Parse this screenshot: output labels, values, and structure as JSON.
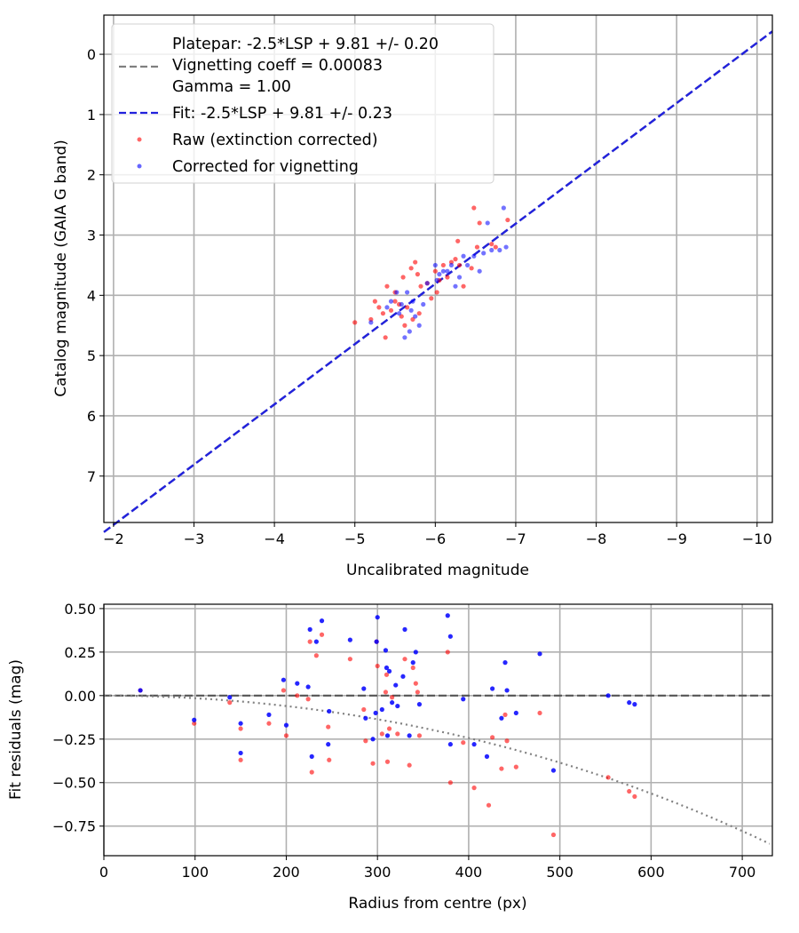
{
  "chart_data": [
    {
      "type": "scatter",
      "xlabel": "Uncalibrated magnitude",
      "ylabel": "Catalog magnitude (GAIA G band)",
      "xlim": [
        -1.88,
        -10.19
      ],
      "ylim": [
        7.77,
        -0.65
      ],
      "xticks": [
        -2,
        -3,
        -4,
        -5,
        -6,
        -7,
        -8,
        -9,
        -10
      ],
      "xtick_labels": [
        "−2",
        "−3",
        "−4",
        "−5",
        "−6",
        "−7",
        "−8",
        "−9",
        "−10"
      ],
      "yticks": [
        0,
        1,
        2,
        3,
        4,
        5,
        6,
        7
      ],
      "ytick_labels": [
        "0",
        "1",
        "2",
        "3",
        "4",
        "5",
        "6",
        "7"
      ],
      "grid": true,
      "legend_position": "top-left",
      "legend": {
        "platepar_line1": "Platepar: -2.5*LSP + 9.81 +/- 0.20",
        "platepar_line2": "Vignetting coeff = 0.00083",
        "platepar_line3": "Gamma = 1.00",
        "fit": "Fit: -2.5*LSP + 9.81 +/- 0.23",
        "raw": "Raw (extinction corrected)",
        "corrected": "Corrected for vignetting"
      },
      "lines": [
        {
          "name": "Platepar",
          "slope": 1,
          "intercept": 9.81,
          "color": "#808080",
          "style": "dashed"
        },
        {
          "name": "Fit",
          "slope": 1,
          "intercept": 9.81,
          "color": "#2222dd",
          "style": "dashed"
        }
      ],
      "series": [
        {
          "name": "Raw (extinction corrected)",
          "color": "#ff0000",
          "points": [
            [
              -5.0,
              4.45
            ],
            [
              -5.2,
              4.4
            ],
            [
              -5.25,
              4.1
            ],
            [
              -5.3,
              4.2
            ],
            [
              -5.35,
              4.3
            ],
            [
              -5.38,
              4.7
            ],
            [
              -5.4,
              3.85
            ],
            [
              -5.45,
              4.25
            ],
            [
              -5.5,
              4.1
            ],
            [
              -5.5,
              3.95
            ],
            [
              -5.55,
              4.15
            ],
            [
              -5.58,
              4.35
            ],
            [
              -5.6,
              3.7
            ],
            [
              -5.62,
              4.5
            ],
            [
              -5.65,
              4.2
            ],
            [
              -5.7,
              3.55
            ],
            [
              -5.72,
              4.4
            ],
            [
              -5.75,
              3.45
            ],
            [
              -5.78,
              3.65
            ],
            [
              -5.8,
              4.3
            ],
            [
              -5.82,
              3.85
            ],
            [
              -5.9,
              3.8
            ],
            [
              -5.95,
              4.05
            ],
            [
              -6.0,
              3.6
            ],
            [
              -6.02,
              3.95
            ],
            [
              -6.05,
              3.75
            ],
            [
              -6.1,
              3.5
            ],
            [
              -6.15,
              3.7
            ],
            [
              -6.2,
              3.45
            ],
            [
              -6.25,
              3.4
            ],
            [
              -6.28,
              3.1
            ],
            [
              -6.3,
              3.5
            ],
            [
              -6.35,
              3.85
            ],
            [
              -6.45,
              3.55
            ],
            [
              -6.48,
              2.55
            ],
            [
              -6.52,
              3.2
            ],
            [
              -6.55,
              2.8
            ],
            [
              -6.7,
              3.15
            ],
            [
              -6.75,
              3.2
            ],
            [
              -6.9,
              2.75
            ]
          ]
        },
        {
          "name": "Corrected for vignetting",
          "color": "#0000ff",
          "points": [
            [
              -5.2,
              4.45
            ],
            [
              -5.4,
              4.2
            ],
            [
              -5.45,
              4.1
            ],
            [
              -5.52,
              3.95
            ],
            [
              -5.55,
              4.3
            ],
            [
              -5.58,
              4.15
            ],
            [
              -5.62,
              4.7
            ],
            [
              -5.65,
              3.95
            ],
            [
              -5.68,
              4.6
            ],
            [
              -5.7,
              4.25
            ],
            [
              -5.72,
              4.1
            ],
            [
              -5.75,
              4.35
            ],
            [
              -5.8,
              4.5
            ],
            [
              -5.85,
              4.15
            ],
            [
              -5.9,
              3.8
            ],
            [
              -6.0,
              3.5
            ],
            [
              -6.02,
              3.75
            ],
            [
              -6.05,
              3.65
            ],
            [
              -6.1,
              3.6
            ],
            [
              -6.15,
              3.6
            ],
            [
              -6.2,
              3.5
            ],
            [
              -6.25,
              3.85
            ],
            [
              -6.3,
              3.7
            ],
            [
              -6.35,
              3.35
            ],
            [
              -6.4,
              3.5
            ],
            [
              -6.48,
              3.35
            ],
            [
              -6.55,
              3.6
            ],
            [
              -6.6,
              3.3
            ],
            [
              -6.65,
              2.8
            ],
            [
              -6.7,
              3.25
            ],
            [
              -6.8,
              3.25
            ],
            [
              -6.85,
              2.55
            ],
            [
              -6.88,
              3.2
            ]
          ]
        }
      ]
    },
    {
      "type": "scatter",
      "xlabel": "Radius from centre (px)",
      "ylabel": "Fit residuals (mag)",
      "xlim": [
        0,
        733
      ],
      "ylim": [
        -0.92,
        0.525
      ],
      "xticks": [
        0,
        100,
        200,
        300,
        400,
        500,
        600,
        700
      ],
      "xtick_labels": [
        "0",
        "100",
        "200",
        "300",
        "400",
        "500",
        "600",
        "700"
      ],
      "yticks": [
        0.5,
        0.25,
        0,
        -0.25,
        -0.5,
        -0.75
      ],
      "ytick_labels": [
        "0.50",
        "0.25",
        "0.00",
        "−0.25",
        "−0.50",
        "−0.75"
      ],
      "grid": true,
      "zero_line": {
        "value": 0,
        "color": "#555555",
        "style": "dashed"
      },
      "vignetting_curve": {
        "coeff": 0.00083,
        "color": "#808080",
        "style": "dotted"
      },
      "series": [
        {
          "name": "Raw (extinction corrected)",
          "color": "#ff0000",
          "points": [
            [
              40,
              0.03
            ],
            [
              99,
              -0.16
            ],
            [
              138,
              -0.04
            ],
            [
              150,
              -0.19
            ],
            [
              150,
              -0.37
            ],
            [
              181,
              -0.16
            ],
            [
              197,
              0.03
            ],
            [
              200,
              -0.23
            ],
            [
              212,
              0.0
            ],
            [
              224,
              -0.02
            ],
            [
              226,
              0.31
            ],
            [
              228,
              -0.44
            ],
            [
              233,
              0.23
            ],
            [
              239,
              0.35
            ],
            [
              246,
              -0.18
            ],
            [
              247,
              -0.37
            ],
            [
              270,
              0.21
            ],
            [
              285,
              -0.08
            ],
            [
              287,
              -0.26
            ],
            [
              295,
              -0.39
            ],
            [
              299,
              0.31
            ],
            [
              300,
              0.17
            ],
            [
              305,
              -0.22
            ],
            [
              309,
              0.02
            ],
            [
              310,
              0.12
            ],
            [
              311,
              -0.38
            ],
            [
              313,
              -0.19
            ],
            [
              316,
              -0.01
            ],
            [
              322,
              -0.22
            ],
            [
              330,
              0.21
            ],
            [
              335,
              -0.4
            ],
            [
              339,
              0.16
            ],
            [
              342,
              0.07
            ],
            [
              344,
              0.02
            ],
            [
              346,
              -0.23
            ],
            [
              377,
              0.25
            ],
            [
              380,
              -0.5
            ],
            [
              394,
              -0.27
            ],
            [
              406,
              -0.53
            ],
            [
              422,
              -0.63
            ],
            [
              426,
              -0.24
            ],
            [
              436,
              -0.42
            ],
            [
              440,
              -0.11
            ],
            [
              442,
              -0.26
            ],
            [
              452,
              -0.41
            ],
            [
              478,
              -0.1
            ],
            [
              493,
              -0.8
            ],
            [
              553,
              -0.47
            ],
            [
              576,
              -0.55
            ],
            [
              582,
              -0.58
            ]
          ]
        },
        {
          "name": "Corrected for vignetting",
          "color": "#0000ff",
          "points": [
            [
              40,
              0.03
            ],
            [
              99,
              -0.14
            ],
            [
              138,
              -0.01
            ],
            [
              150,
              -0.16
            ],
            [
              150,
              -0.33
            ],
            [
              181,
              -0.11
            ],
            [
              197,
              0.09
            ],
            [
              200,
              -0.17
            ],
            [
              212,
              0.07
            ],
            [
              224,
              0.05
            ],
            [
              226,
              0.38
            ],
            [
              228,
              -0.35
            ],
            [
              233,
              0.31
            ],
            [
              239,
              0.43
            ],
            [
              246,
              -0.28
            ],
            [
              247,
              -0.09
            ],
            [
              270,
              0.32
            ],
            [
              285,
              0.04
            ],
            [
              287,
              -0.13
            ],
            [
              295,
              -0.25
            ],
            [
              298,
              -0.1
            ],
            [
              299,
              0.31
            ],
            [
              300,
              0.45
            ],
            [
              305,
              -0.08
            ],
            [
              309,
              0.26
            ],
            [
              310,
              0.16
            ],
            [
              311,
              -0.23
            ],
            [
              313,
              0.14
            ],
            [
              316,
              -0.04
            ],
            [
              320,
              0.06
            ],
            [
              322,
              -0.06
            ],
            [
              328,
              0.11
            ],
            [
              330,
              0.38
            ],
            [
              335,
              -0.23
            ],
            [
              339,
              0.19
            ],
            [
              342,
              0.25
            ],
            [
              346,
              -0.05
            ],
            [
              377,
              0.46
            ],
            [
              380,
              0.34
            ],
            [
              380,
              -0.28
            ],
            [
              394,
              -0.02
            ],
            [
              406,
              -0.28
            ],
            [
              420,
              -0.35
            ],
            [
              426,
              0.04
            ],
            [
              436,
              -0.13
            ],
            [
              440,
              0.19
            ],
            [
              442,
              0.03
            ],
            [
              452,
              -0.1
            ],
            [
              478,
              0.24
            ],
            [
              493,
              -0.43
            ],
            [
              553,
              0.0
            ],
            [
              576,
              -0.04
            ],
            [
              582,
              -0.05
            ]
          ]
        }
      ]
    }
  ]
}
